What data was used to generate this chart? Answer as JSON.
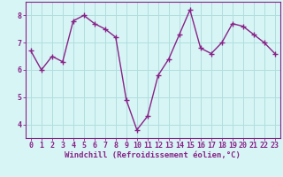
{
  "x": [
    0,
    1,
    2,
    3,
    4,
    5,
    6,
    7,
    8,
    9,
    10,
    11,
    12,
    13,
    14,
    15,
    16,
    17,
    18,
    19,
    20,
    21,
    22,
    23
  ],
  "y": [
    6.7,
    6.0,
    6.5,
    6.3,
    7.8,
    8.0,
    7.7,
    7.5,
    7.2,
    4.9,
    3.8,
    4.3,
    5.8,
    6.4,
    7.3,
    8.2,
    6.8,
    6.6,
    7.0,
    7.7,
    7.6,
    7.3,
    7.0,
    6.6
  ],
  "line_color": "#882288",
  "marker": "+",
  "markersize": 4,
  "linewidth": 1.0,
  "bg_color": "#d8f5f5",
  "grid_color": "#b0dede",
  "axis_color": "#882288",
  "tick_color": "#882288",
  "xlabel": "Windchill (Refroidissement éolien,°C)",
  "xlabel_color": "#882288",
  "xlabel_fontsize": 6.5,
  "ytick_labels": [
    "4",
    "5",
    "6",
    "7",
    "8"
  ],
  "ylim": [
    3.5,
    8.5
  ],
  "xlim": [
    -0.5,
    23.5
  ],
  "tick_fontsize": 6,
  "title": ""
}
